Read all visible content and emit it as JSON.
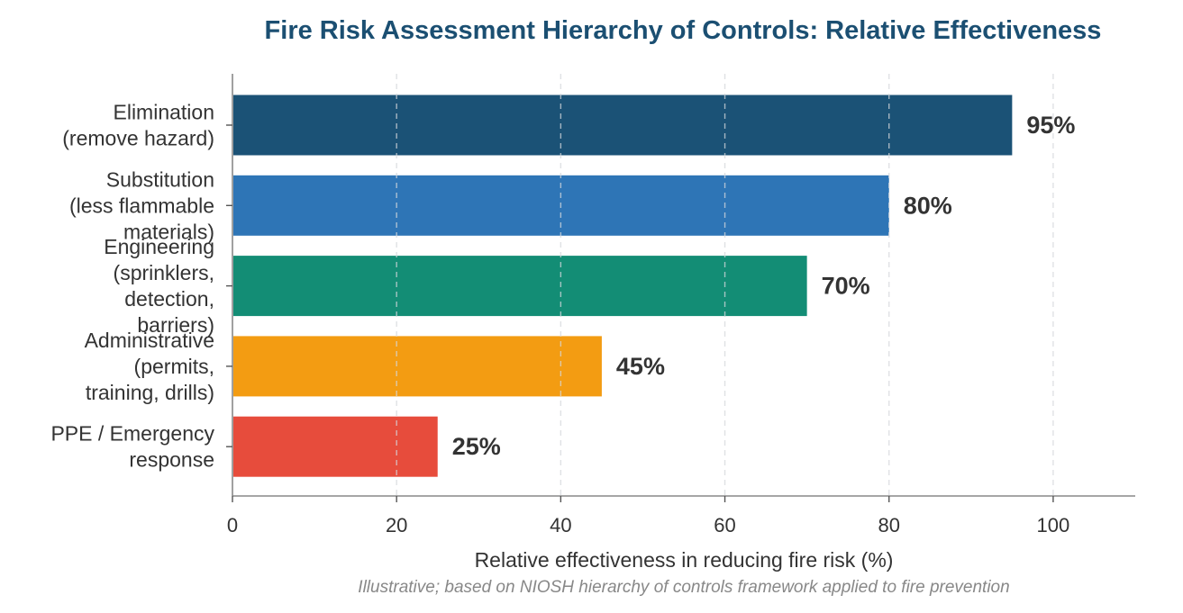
{
  "chart_data": {
    "type": "bar",
    "orientation": "horizontal",
    "title": "Fire Risk Assessment Hierarchy of Controls: Relative Effectiveness",
    "xlabel": "Relative effectiveness in reducing fire risk (%)",
    "ylabel": "",
    "note": "Illustrative; based on NIOSH hierarchy of controls framework applied to fire prevention",
    "xlim": [
      0,
      110
    ],
    "xticks": [
      0,
      20,
      40,
      60,
      80,
      100
    ],
    "grid": "vertical-dashed",
    "legend": "none",
    "categories": [
      [
        "Elimination",
        "(remove hazard)"
      ],
      [
        "Substitution",
        "(less flammable",
        "materials)"
      ],
      [
        "Engineering",
        "(sprinklers,",
        "detection,",
        "barriers)"
      ],
      [
        "Administrative",
        "(permits,",
        "training, drills)"
      ],
      [
        "PPE / Emergency",
        "response"
      ]
    ],
    "values": [
      95,
      80,
      70,
      45,
      25
    ],
    "value_labels": [
      "95%",
      "80%",
      "70%",
      "45%",
      "25%"
    ],
    "colors": [
      "#1b5276",
      "#2e75b6",
      "#138d75",
      "#f39c12",
      "#e74c3c"
    ]
  }
}
